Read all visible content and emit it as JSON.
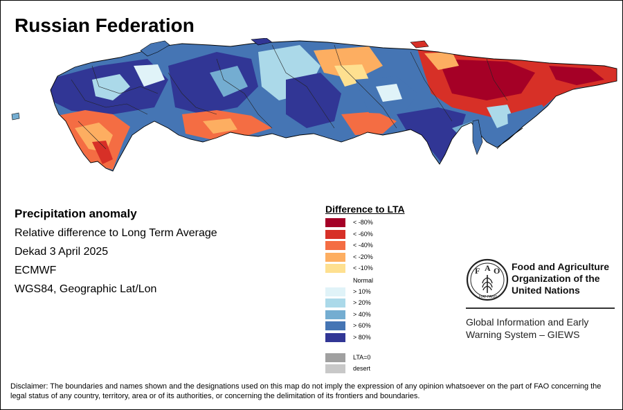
{
  "map": {
    "title": "Russian Federation",
    "info": {
      "heading": "Precipitation anomaly",
      "subtitle": "Relative difference to Long Term Average",
      "period": "Dekad 3 April 2025",
      "source": "ECMWF",
      "projection": "WGS84, Geographic Lat/Lon"
    },
    "legend": {
      "title": "Difference to LTA",
      "items": [
        {
          "label": "< -80%",
          "color": "#a50026"
        },
        {
          "label": "< -60%",
          "color": "#d73027"
        },
        {
          "label": "< -40%",
          "color": "#f46d43"
        },
        {
          "label": "< -20%",
          "color": "#fdae61"
        },
        {
          "label": "< -10%",
          "color": "#fee090"
        },
        {
          "label": "Normal",
          "color": "#ffffff"
        },
        {
          "label": "> 10%",
          "color": "#e0f3f8"
        },
        {
          "label": "> 20%",
          "color": "#abd9e9"
        },
        {
          "label": "> 40%",
          "color": "#74add1"
        },
        {
          "label": "> 60%",
          "color": "#4575b4"
        },
        {
          "label": "> 80%",
          "color": "#313695"
        }
      ],
      "extra": [
        {
          "label": "LTA=0",
          "color": "#a0a0a0"
        },
        {
          "label": "desert",
          "color": "#c8c8c8"
        }
      ]
    }
  },
  "logo": {
    "letters": [
      "F",
      "A",
      "O"
    ],
    "motto": "FIAT PANIS",
    "org_name": "Food and Agriculture Organization of the United Nations",
    "system_name": "Global Information and Early Warning System – GIEWS"
  },
  "disclaimer": "Disclaimer: The boundaries and names shown and the designations used on this map do not imply the expression of any opinion whatsoever on the part of FAO concerning the legal status of any country, territory, area or of its authorities, or concerning the delimitation of its frontiers and boundaries."
}
